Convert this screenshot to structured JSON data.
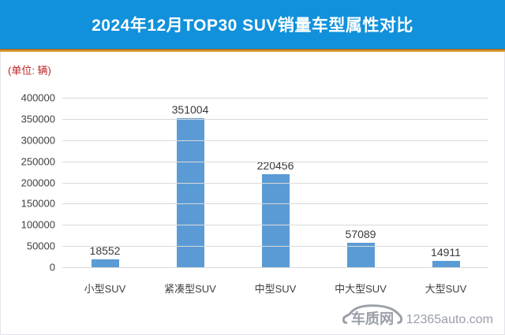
{
  "header": {
    "title": "2024年12月TOP30 SUV销量车型属性对比"
  },
  "chart_data": {
    "type": "bar",
    "title": "2024年12月TOP30 SUV销量车型属性对比",
    "unit_label": "(单位: 辆)",
    "categories": [
      "小型SUV",
      "紧凑型SUV",
      "中型SUV",
      "中大型SUV",
      "大型SUV"
    ],
    "values": [
      18552,
      351004,
      220456,
      57089,
      14911
    ],
    "xlabel": "",
    "ylabel": "",
    "ylim": [
      0,
      400000
    ],
    "yticks": [
      0,
      50000,
      100000,
      150000,
      200000,
      250000,
      300000,
      350000,
      400000
    ],
    "grid": true,
    "legend": false,
    "data_labels": true
  },
  "footer": {
    "brand": "车质网",
    "site": "12365auto.com"
  },
  "colors": {
    "header_bg": "#1191db",
    "header_text": "#ffffff",
    "accent_line": "#dd9833",
    "unit_label_text": "#bb2222",
    "bar": "#5b9bd5",
    "gridline": "#d9d9d9",
    "axis_text": "#404040",
    "logo_gray": "#9a9fa8"
  }
}
